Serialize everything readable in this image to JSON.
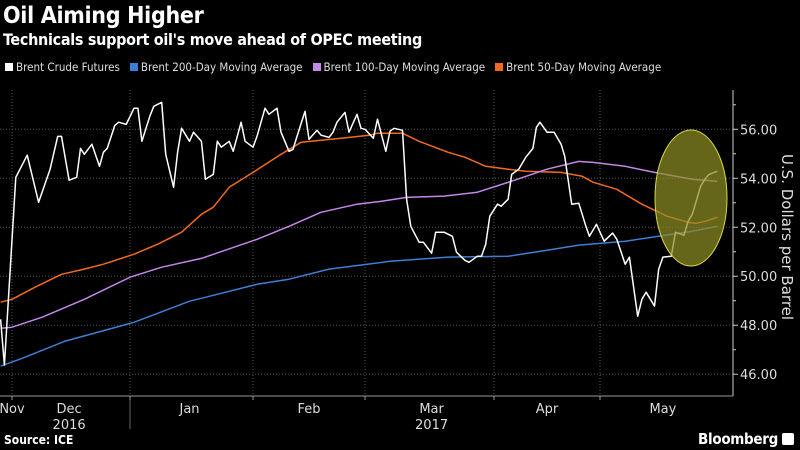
{
  "header": {
    "title": "Oil Aiming Higher",
    "subtitle": "Technicals support oil's move ahead of OPEC meeting"
  },
  "footer": {
    "source": "Source: ICE",
    "brand": "Bloomberg"
  },
  "chart_data": {
    "type": "line",
    "title": "Oil Aiming Higher",
    "subtitle": "Technicals support oil's move ahead of OPEC meeting",
    "ylabel": "U.S. Dollars per Barrel",
    "xlabel": "",
    "ylim": [
      45.6,
      57.4
    ],
    "y_axis_side": "right",
    "y_ticks": [
      "46.00",
      "48.00",
      "50.00",
      "52.00",
      "54.00",
      "56.00"
    ],
    "y_tick_values": [
      46,
      48,
      50,
      52,
      54,
      56
    ],
    "x_tick_labels": [
      {
        "label": "Nov",
        "date": "2016-11-27"
      },
      {
        "label": "Dec",
        "date": "2016-12-16"
      },
      {
        "label": "Jan",
        "date": "2017-01-16"
      },
      {
        "label": "Feb",
        "date": "2017-02-15"
      },
      {
        "label": "Mar",
        "date": "2017-03-17"
      },
      {
        "label": "Apr",
        "date": "2017-04-16"
      },
      {
        "label": "May",
        "date": "2017-05-16"
      }
    ],
    "year_labels": [
      {
        "label": "2016",
        "date": "2016-12-16"
      },
      {
        "label": "2017",
        "date": "2017-03-17"
      }
    ],
    "grid": true,
    "legend_position": "top",
    "series": [
      {
        "name": "Brent Crude Futures",
        "color": "#ffffff",
        "points": [
          [
            "2016-11-28",
            48.24
          ],
          [
            "2016-11-29",
            46.37
          ],
          [
            "2016-12-02",
            54.04
          ],
          [
            "2016-12-05",
            54.94
          ],
          [
            "2016-12-08",
            53.02
          ],
          [
            "2016-12-11",
            54.37
          ],
          [
            "2016-12-13",
            55.71
          ],
          [
            "2016-12-14",
            55.71
          ],
          [
            "2016-12-16",
            53.92
          ],
          [
            "2016-12-18",
            54.04
          ],
          [
            "2016-12-19",
            55.22
          ],
          [
            "2016-12-20",
            54.98
          ],
          [
            "2016-12-22",
            55.39
          ],
          [
            "2016-12-24",
            54.49
          ],
          [
            "2016-12-25",
            55.06
          ],
          [
            "2016-12-26",
            55.22
          ],
          [
            "2016-12-28",
            56.16
          ],
          [
            "2016-12-29",
            56.29
          ],
          [
            "2016-12-31",
            56.2
          ],
          [
            "2017-01-02",
            56.86
          ],
          [
            "2017-01-03",
            56.86
          ],
          [
            "2017-01-04",
            55.51
          ],
          [
            "2017-01-06",
            56.53
          ],
          [
            "2017-01-07",
            56.94
          ],
          [
            "2017-01-09",
            57.1
          ],
          [
            "2017-01-10",
            54.98
          ],
          [
            "2017-01-12",
            53.63
          ],
          [
            "2017-01-13",
            55.06
          ],
          [
            "2017-01-14",
            56.04
          ],
          [
            "2017-01-16",
            55.51
          ],
          [
            "2017-01-17",
            55.88
          ],
          [
            "2017-01-19",
            55.51
          ],
          [
            "2017-01-20",
            53.96
          ],
          [
            "2017-01-22",
            54.16
          ],
          [
            "2017-01-23",
            55.51
          ],
          [
            "2017-01-24",
            55.27
          ],
          [
            "2017-01-26",
            55.51
          ],
          [
            "2017-01-27",
            55.1
          ],
          [
            "2017-01-29",
            56.29
          ],
          [
            "2017-01-30",
            55.51
          ],
          [
            "2017-02-01",
            55.27
          ],
          [
            "2017-02-02",
            55.71
          ],
          [
            "2017-02-04",
            56.86
          ],
          [
            "2017-02-05",
            56.61
          ],
          [
            "2017-02-07",
            56.86
          ],
          [
            "2017-02-08",
            55.88
          ],
          [
            "2017-02-10",
            55.1
          ],
          [
            "2017-02-11",
            55.18
          ],
          [
            "2017-02-12",
            55.71
          ],
          [
            "2017-02-14",
            56.73
          ],
          [
            "2017-02-15",
            55.59
          ],
          [
            "2017-02-17",
            55.96
          ],
          [
            "2017-02-18",
            55.76
          ],
          [
            "2017-02-20",
            55.67
          ],
          [
            "2017-02-21",
            55.88
          ],
          [
            "2017-02-22",
            56.29
          ],
          [
            "2017-02-24",
            56.69
          ],
          [
            "2017-02-25",
            55.88
          ],
          [
            "2017-02-27",
            56.61
          ],
          [
            "2017-02-28",
            56.04
          ],
          [
            "2017-03-01",
            56.0
          ],
          [
            "2017-03-03",
            55.63
          ],
          [
            "2017-03-04",
            56.41
          ],
          [
            "2017-03-06",
            55.1
          ],
          [
            "2017-03-07",
            55.92
          ],
          [
            "2017-03-08",
            56.04
          ],
          [
            "2017-03-10",
            55.96
          ],
          [
            "2017-03-11",
            53.14
          ],
          [
            "2017-03-12",
            52.04
          ],
          [
            "2017-03-14",
            51.39
          ],
          [
            "2017-03-15",
            51.39
          ],
          [
            "2017-03-17",
            50.94
          ],
          [
            "2017-03-18",
            51.8
          ],
          [
            "2017-03-19",
            51.8
          ],
          [
            "2017-03-20",
            51.8
          ],
          [
            "2017-03-22",
            51.63
          ],
          [
            "2017-03-23",
            50.98
          ],
          [
            "2017-03-25",
            50.65
          ],
          [
            "2017-03-26",
            50.57
          ],
          [
            "2017-03-28",
            50.82
          ],
          [
            "2017-03-29",
            50.82
          ],
          [
            "2017-03-30",
            51.31
          ],
          [
            "2017-03-31",
            52.45
          ],
          [
            "2017-04-02",
            52.94
          ],
          [
            "2017-04-03",
            52.86
          ],
          [
            "2017-04-05",
            53.14
          ],
          [
            "2017-04-06",
            54.16
          ],
          [
            "2017-04-08",
            54.37
          ],
          [
            "2017-04-10",
            54.86
          ],
          [
            "2017-04-12",
            55.22
          ],
          [
            "2017-04-13",
            56.08
          ],
          [
            "2017-04-14",
            56.29
          ],
          [
            "2017-04-16",
            55.88
          ],
          [
            "2017-04-18",
            55.88
          ],
          [
            "2017-04-20",
            55.39
          ],
          [
            "2017-04-21",
            54.9
          ],
          [
            "2017-04-23",
            52.94
          ],
          [
            "2017-04-25",
            52.98
          ],
          [
            "2017-04-27",
            52.04
          ],
          [
            "2017-04-28",
            51.63
          ],
          [
            "2017-04-30",
            52.12
          ],
          [
            "2017-05-01",
            51.8
          ],
          [
            "2017-05-02",
            51.43
          ],
          [
            "2017-05-04",
            51.76
          ],
          [
            "2017-05-05",
            51.51
          ],
          [
            "2017-05-07",
            50.49
          ],
          [
            "2017-05-08",
            50.78
          ],
          [
            "2017-05-10",
            48.37
          ],
          [
            "2017-05-11",
            49.06
          ],
          [
            "2017-05-12",
            49.35
          ],
          [
            "2017-05-14",
            48.78
          ],
          [
            "2017-05-15",
            50.29
          ],
          [
            "2017-05-16",
            50.78
          ],
          [
            "2017-05-18",
            50.82
          ],
          [
            "2017-05-19",
            51.8
          ],
          [
            "2017-05-21",
            51.67
          ],
          [
            "2017-05-22",
            52.24
          ],
          [
            "2017-05-23",
            52.53
          ],
          [
            "2017-05-25",
            53.67
          ],
          [
            "2017-05-26",
            53.96
          ],
          [
            "2017-05-27",
            54.16
          ],
          [
            "2017-05-29",
            54.29
          ]
        ]
      },
      {
        "name": "Brent 200-Day Moving Average",
        "color": "#3c7fd4",
        "points": [
          [
            "2016-11-28",
            46.33
          ],
          [
            "2016-12-03",
            46.61
          ],
          [
            "2016-12-15",
            47.35
          ],
          [
            "2017-01-02",
            48.12
          ],
          [
            "2017-01-16",
            48.98
          ],
          [
            "2017-01-19",
            49.1
          ],
          [
            "2017-02-02",
            49.67
          ],
          [
            "2017-02-10",
            49.88
          ],
          [
            "2017-02-20",
            50.29
          ],
          [
            "2017-03-07",
            50.61
          ],
          [
            "2017-03-21",
            50.78
          ],
          [
            "2017-04-05",
            50.82
          ],
          [
            "2017-04-16",
            51.06
          ],
          [
            "2017-04-25",
            51.27
          ],
          [
            "2017-05-07",
            51.43
          ],
          [
            "2017-05-15",
            51.63
          ],
          [
            "2017-05-23",
            51.84
          ],
          [
            "2017-05-29",
            52.04
          ]
        ]
      },
      {
        "name": "Brent 100-Day Moving Average",
        "color": "#c387e8",
        "points": [
          [
            "2016-11-28",
            47.88
          ],
          [
            "2016-12-01",
            47.92
          ],
          [
            "2016-12-09",
            48.33
          ],
          [
            "2016-12-20",
            49.06
          ],
          [
            "2017-01-01",
            49.96
          ],
          [
            "2017-01-09",
            50.37
          ],
          [
            "2017-01-19",
            50.73
          ],
          [
            "2017-02-02",
            51.51
          ],
          [
            "2017-02-10",
            52.04
          ],
          [
            "2017-02-18",
            52.61
          ],
          [
            "2017-02-27",
            52.94
          ],
          [
            "2017-03-05",
            53.06
          ],
          [
            "2017-03-11",
            53.22
          ],
          [
            "2017-03-20",
            53.27
          ],
          [
            "2017-03-28",
            53.43
          ],
          [
            "2017-04-06",
            53.88
          ],
          [
            "2017-04-16",
            54.37
          ],
          [
            "2017-04-25",
            54.69
          ],
          [
            "2017-04-29",
            54.65
          ],
          [
            "2017-05-07",
            54.49
          ],
          [
            "2017-05-14",
            54.24
          ],
          [
            "2017-05-23",
            53.96
          ],
          [
            "2017-05-29",
            53.88
          ]
        ]
      },
      {
        "name": "Brent 50-Day Moving Average",
        "color": "#f26b1d",
        "points": [
          [
            "2016-11-28",
            48.94
          ],
          [
            "2016-12-01",
            49.06
          ],
          [
            "2016-12-07",
            49.55
          ],
          [
            "2016-12-14",
            50.08
          ],
          [
            "2016-12-20",
            50.29
          ],
          [
            "2016-12-25",
            50.49
          ],
          [
            "2017-01-02",
            50.9
          ],
          [
            "2017-01-08",
            51.31
          ],
          [
            "2017-01-14",
            51.8
          ],
          [
            "2017-01-19",
            52.53
          ],
          [
            "2017-01-22",
            52.82
          ],
          [
            "2017-01-26",
            53.63
          ],
          [
            "2017-02-01",
            54.24
          ],
          [
            "2017-02-08",
            54.98
          ],
          [
            "2017-02-13",
            55.47
          ],
          [
            "2017-02-23",
            55.63
          ],
          [
            "2017-03-02",
            55.76
          ],
          [
            "2017-03-04",
            55.84
          ],
          [
            "2017-03-10",
            55.84
          ],
          [
            "2017-03-14",
            55.51
          ],
          [
            "2017-03-21",
            55.06
          ],
          [
            "2017-03-25",
            54.86
          ],
          [
            "2017-03-30",
            54.49
          ],
          [
            "2017-04-05",
            54.37
          ],
          [
            "2017-04-10",
            54.29
          ],
          [
            "2017-04-20",
            54.24
          ],
          [
            "2017-04-26",
            54.08
          ],
          [
            "2017-04-29",
            53.84
          ],
          [
            "2017-05-05",
            53.55
          ],
          [
            "2017-05-11",
            52.94
          ],
          [
            "2017-05-17",
            52.45
          ],
          [
            "2017-05-22",
            52.2
          ],
          [
            "2017-05-24",
            52.16
          ],
          [
            "2017-05-26",
            52.24
          ],
          [
            "2017-05-29",
            52.41
          ]
        ]
      }
    ],
    "highlight_color": "#d8d84a"
  }
}
